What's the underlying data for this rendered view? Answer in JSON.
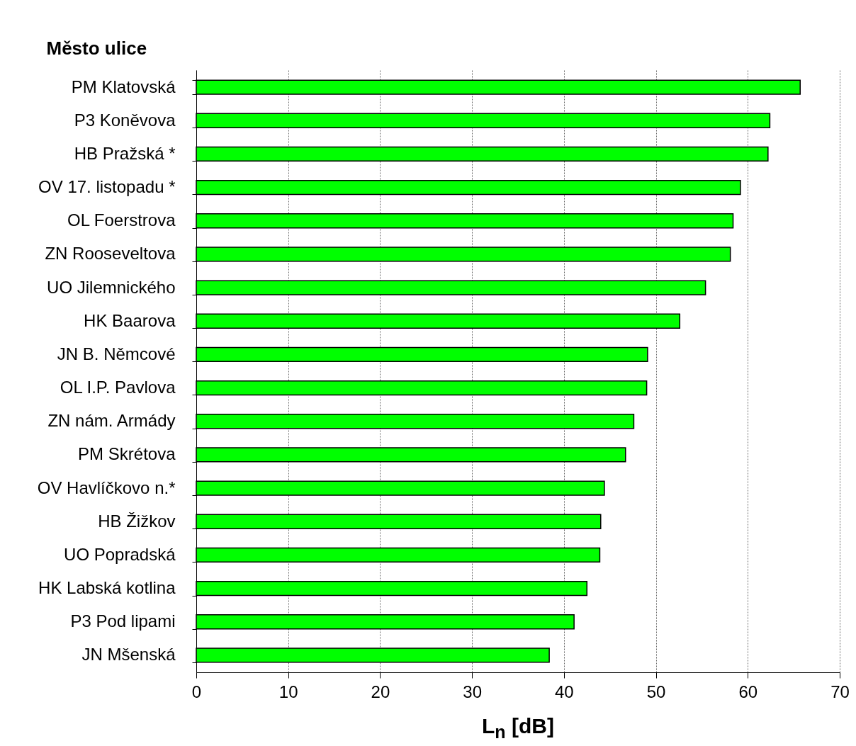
{
  "chart_data": {
    "type": "bar",
    "orientation": "horizontal",
    "ylabel": "Město ulice",
    "xlabel": "L$_{n}$  [dB]",
    "categories": [
      "PM Klatovská",
      "P3 Koněvova",
      "HB Pražská *",
      "OV 17. listopadu *",
      "OL Foerstrova",
      "ZN Rooseveltova",
      "UO Jilemnického",
      "HK Baarova",
      "JN B. Němcové",
      "OL I.P. Pavlova",
      "ZN nám. Armády",
      "PM Skrétova",
      "OV Havlíčkovo n.*",
      "HB Žižkov",
      "UO Popradská",
      "HK Labská kotlina",
      "P3 Pod lipami",
      "JN Mšenská"
    ],
    "values": [
      65.7,
      62.4,
      62.2,
      59.2,
      58.4,
      58.1,
      55.4,
      52.6,
      49.1,
      49.0,
      47.6,
      46.7,
      44.4,
      44.0,
      43.9,
      42.5,
      41.1,
      38.4
    ],
    "color": "#00ff00",
    "xlim": [
      0,
      70
    ],
    "xticks": [
      0,
      10,
      20,
      30,
      40,
      50,
      60,
      70
    ],
    "grid": "x"
  }
}
